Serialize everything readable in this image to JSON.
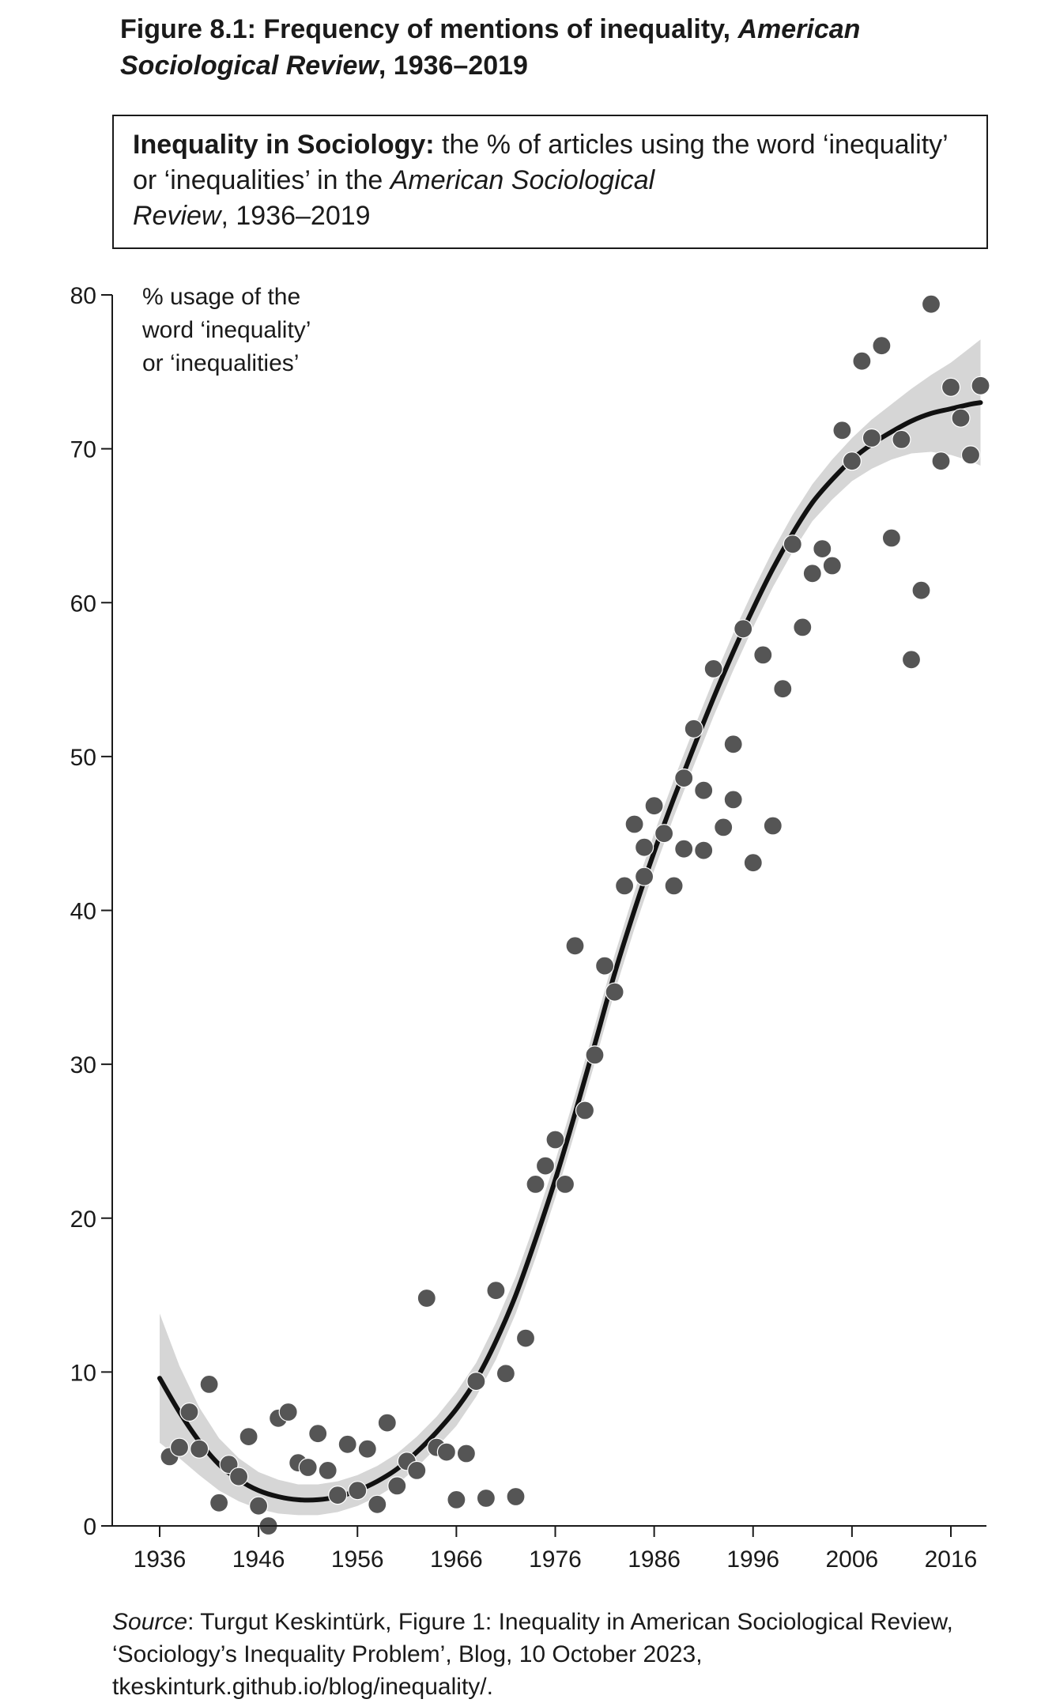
{
  "figure": {
    "title_main": "Figure 8.1: Frequency of mentions of inequality, ",
    "title_italic": "American Sociological Review",
    "title_end": ", 1936–2019"
  },
  "caption": {
    "bold": "Inequality in Sociology:",
    "text1": " the % of articles using the word ‘inequality’ or ‘inequalities’ in the ",
    "italic1": "American Sociological",
    "italic2": "Review",
    "text2": ", 1936–2019"
  },
  "source": {
    "label": "Source",
    "text": ": Turgut Keskintürk, Figure 1: Inequality in American Sociological Review, ‘Sociology’s Inequality Problem’, Blog, 10 October 2023, tkeskinturk.github.io/blog/inequality/."
  },
  "colors": {
    "points": "#555555",
    "trend": "#111111",
    "band": "#d6d6d6",
    "axis": "#1a1a1a"
  },
  "chart_data": {
    "type": "scatter",
    "ylabel_lines": [
      "% usage of the",
      "word ‘inequality’",
      "or ‘inequalities’"
    ],
    "xlabel": "",
    "xlim": [
      1936,
      2019
    ],
    "ylim": [
      0,
      80
    ],
    "xticks": [
      1936,
      1946,
      1956,
      1966,
      1976,
      1986,
      1996,
      2006,
      2016
    ],
    "yticks": [
      0,
      10,
      20,
      30,
      40,
      50,
      60,
      70,
      80
    ],
    "grid": false,
    "series": [
      {
        "kind": "points",
        "x": [
          1937,
          1938,
          1939,
          1940,
          1941,
          1942,
          1943,
          1944,
          1945,
          1946,
          1947,
          1948,
          1949,
          1950,
          1951,
          1952,
          1953,
          1954,
          1955,
          1956,
          1957,
          1958,
          1959,
          1960,
          1961,
          1962,
          1963,
          1964,
          1965,
          1966,
          1967,
          1968,
          1969,
          1970,
          1971,
          1972,
          1973,
          1974,
          1975,
          1976,
          1977,
          1978,
          1979,
          1980,
          1981,
          1982,
          1983,
          1984,
          1985,
          1985,
          1986,
          1987,
          1988,
          1989,
          1989,
          1990,
          1991,
          1991,
          1992,
          1993,
          1994,
          1994,
          1995,
          1996,
          1997,
          1998,
          1999,
          2000,
          2001,
          2002,
          2003,
          2004,
          2005,
          2006,
          2007,
          2008,
          2009,
          2010,
          2011,
          2012,
          2013,
          2014,
          2015,
          2016,
          2017,
          2018,
          2019
        ],
        "y": [
          4.5,
          5.1,
          7.4,
          5.0,
          9.2,
          1.5,
          4.0,
          3.2,
          5.8,
          1.3,
          0.0,
          7.0,
          7.4,
          4.1,
          3.8,
          6.0,
          3.6,
          2.0,
          5.3,
          2.3,
          5.0,
          1.4,
          6.7,
          2.6,
          4.2,
          3.6,
          14.8,
          5.1,
          4.8,
          1.7,
          4.7,
          9.4,
          1.8,
          15.3,
          9.9,
          1.9,
          12.2,
          22.2,
          23.4,
          25.1,
          22.2,
          37.7,
          27.0,
          30.6,
          36.4,
          34.7,
          41.6,
          45.6,
          42.2,
          44.1,
          46.8,
          45.0,
          41.6,
          44.0,
          48.6,
          51.8,
          43.9,
          47.8,
          55.7,
          45.4,
          47.2,
          50.8,
          58.3,
          43.1,
          56.6,
          45.5,
          54.4,
          63.8,
          58.4,
          61.9,
          63.5,
          62.4,
          71.2,
          69.2,
          75.7,
          70.7,
          76.7,
          64.2,
          70.6,
          56.3,
          60.8,
          79.4,
          69.2,
          74.0,
          72.0,
          69.6,
          74.1
        ]
      },
      {
        "kind": "trend",
        "x": [
          1936,
          1938,
          1940,
          1942,
          1944,
          1946,
          1948,
          1950,
          1952,
          1954,
          1956,
          1958,
          1960,
          1962,
          1964,
          1966,
          1968,
          1970,
          1972,
          1974,
          1976,
          1978,
          1980,
          1982,
          1984,
          1986,
          1988,
          1990,
          1992,
          1994,
          1996,
          1998,
          2000,
          2002,
          2004,
          2006,
          2008,
          2010,
          2012,
          2014,
          2016,
          2018,
          2019
        ],
        "y": [
          9.6,
          7.4,
          5.5,
          4.0,
          3.0,
          2.3,
          1.9,
          1.7,
          1.7,
          1.9,
          2.3,
          2.9,
          3.7,
          4.8,
          6.1,
          7.6,
          9.5,
          12.0,
          15.0,
          18.6,
          22.5,
          26.8,
          31.3,
          35.9,
          40.0,
          43.8,
          47.3,
          50.6,
          53.8,
          56.8,
          59.6,
          62.2,
          64.5,
          66.5,
          68.0,
          69.3,
          70.3,
          71.1,
          71.8,
          72.3,
          72.6,
          72.9,
          73.0
        ],
        "band_half_width": [
          4.2,
          3.0,
          2.2,
          1.7,
          1.4,
          1.2,
          1.1,
          1.0,
          1.0,
          1.0,
          1.0,
          1.0,
          1.0,
          1.0,
          1.0,
          1.1,
          1.1,
          1.2,
          1.2,
          1.2,
          1.2,
          1.2,
          1.2,
          1.2,
          1.2,
          1.2,
          1.2,
          1.2,
          1.2,
          1.2,
          1.2,
          1.2,
          1.2,
          1.2,
          1.3,
          1.4,
          1.6,
          1.8,
          2.1,
          2.5,
          3.0,
          3.7,
          4.1
        ]
      }
    ]
  }
}
